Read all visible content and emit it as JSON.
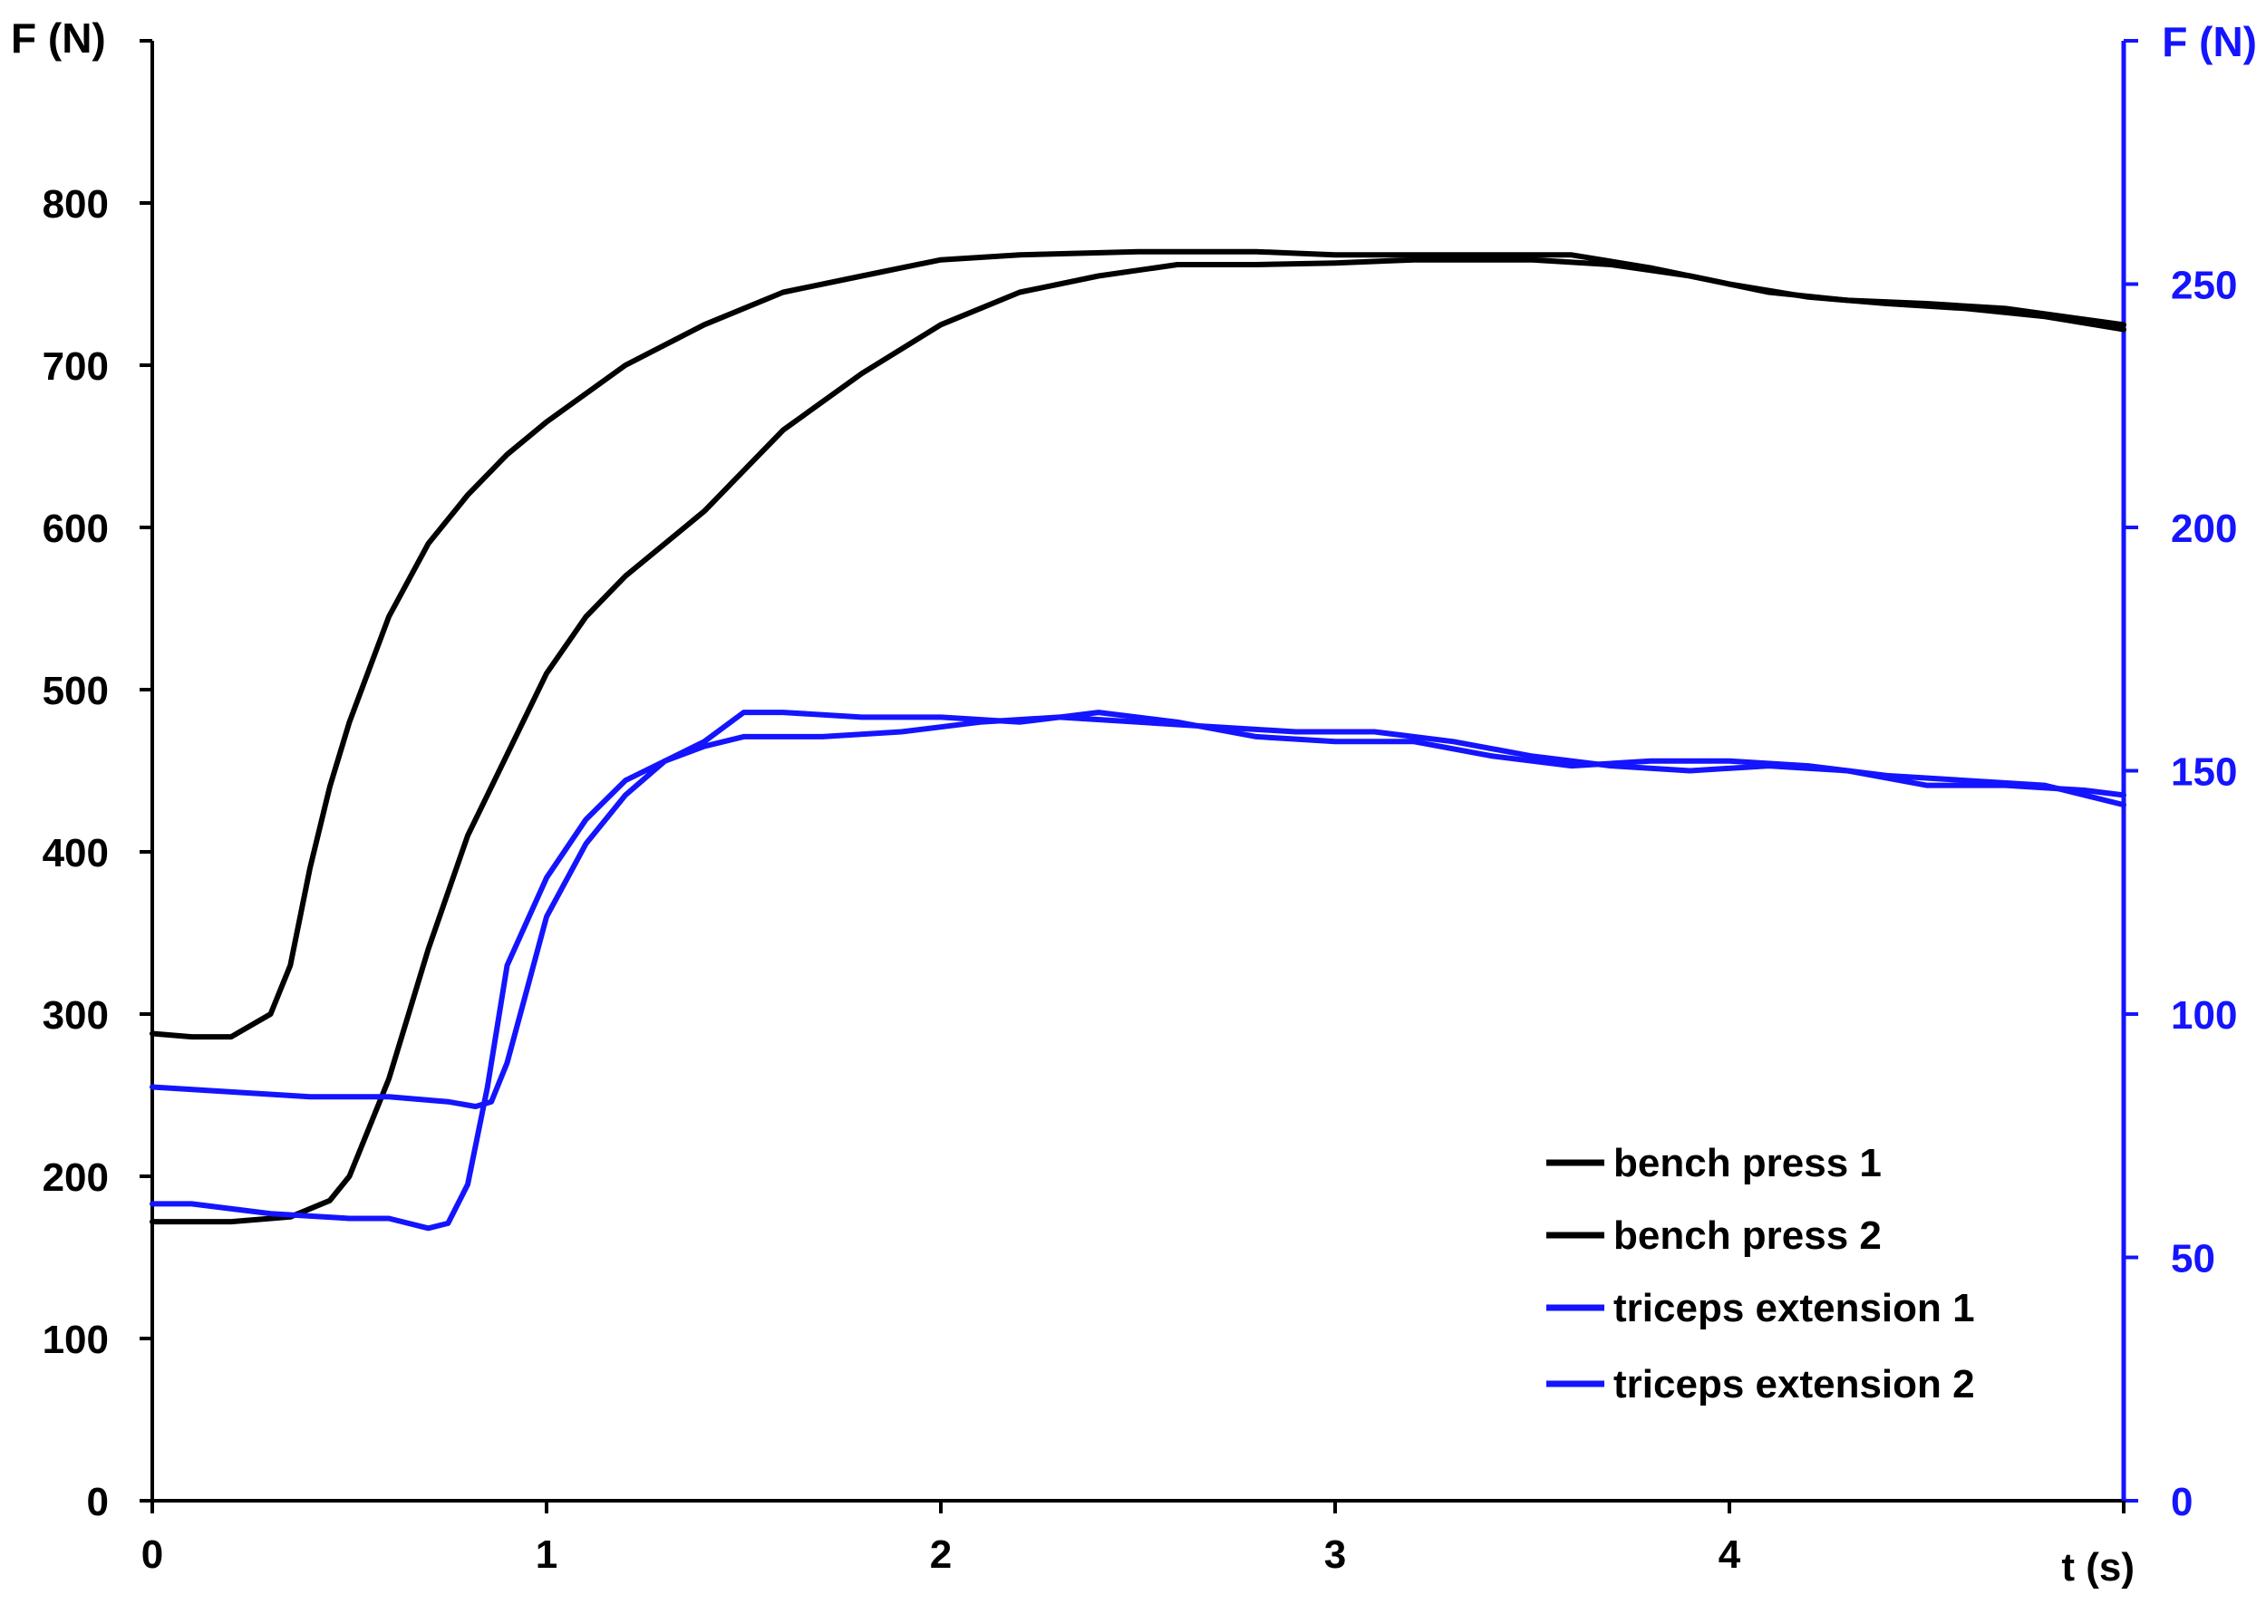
{
  "chart_data": {
    "type": "line",
    "title": "",
    "left_axis": {
      "label": "F (N)",
      "ylim": [
        0,
        900
      ],
      "ticks": [
        0,
        100,
        200,
        300,
        400,
        500,
        600,
        700,
        800
      ],
      "color": "#000000"
    },
    "right_axis": {
      "label": "F (N)",
      "ylim": [
        0,
        300
      ],
      "ticks": [
        0,
        50,
        100,
        150,
        200,
        250
      ],
      "color": "#1414ff"
    },
    "x_axis": {
      "label": "t (s)",
      "xlim": [
        0,
        5
      ],
      "ticks": [
        0,
        1,
        2,
        3,
        4
      ]
    },
    "grid": false,
    "legend_position": "bottom-right",
    "series": [
      {
        "name": "bench press 1",
        "axis": "left",
        "color": "#000000",
        "points": [
          [
            0,
            288
          ],
          [
            0.1,
            286
          ],
          [
            0.2,
            286
          ],
          [
            0.3,
            300
          ],
          [
            0.35,
            330
          ],
          [
            0.4,
            390
          ],
          [
            0.45,
            440
          ],
          [
            0.5,
            480
          ],
          [
            0.6,
            545
          ],
          [
            0.7,
            590
          ],
          [
            0.8,
            620
          ],
          [
            0.9,
            645
          ],
          [
            1.0,
            665
          ],
          [
            1.2,
            700
          ],
          [
            1.4,
            725
          ],
          [
            1.6,
            745
          ],
          [
            1.8,
            755
          ],
          [
            2.0,
            765
          ],
          [
            2.2,
            768
          ],
          [
            2.5,
            770
          ],
          [
            2.8,
            770
          ],
          [
            3.0,
            768
          ],
          [
            3.3,
            768
          ],
          [
            3.6,
            768
          ],
          [
            3.8,
            760
          ],
          [
            4.0,
            750
          ],
          [
            4.2,
            742
          ],
          [
            4.4,
            738
          ],
          [
            4.6,
            735
          ],
          [
            4.8,
            730
          ],
          [
            5.0,
            722
          ]
        ]
      },
      {
        "name": "bench press 2",
        "axis": "left",
        "color": "#000000",
        "points": [
          [
            0,
            172
          ],
          [
            0.2,
            172
          ],
          [
            0.35,
            175
          ],
          [
            0.45,
            185
          ],
          [
            0.5,
            200
          ],
          [
            0.55,
            230
          ],
          [
            0.6,
            260
          ],
          [
            0.65,
            300
          ],
          [
            0.7,
            340
          ],
          [
            0.8,
            410
          ],
          [
            0.9,
            460
          ],
          [
            1.0,
            510
          ],
          [
            1.1,
            545
          ],
          [
            1.2,
            570
          ],
          [
            1.3,
            590
          ],
          [
            1.4,
            610
          ],
          [
            1.5,
            635
          ],
          [
            1.6,
            660
          ],
          [
            1.8,
            695
          ],
          [
            2.0,
            725
          ],
          [
            2.2,
            745
          ],
          [
            2.4,
            755
          ],
          [
            2.6,
            762
          ],
          [
            2.8,
            762
          ],
          [
            3.0,
            763
          ],
          [
            3.2,
            765
          ],
          [
            3.5,
            765
          ],
          [
            3.7,
            762
          ],
          [
            3.9,
            755
          ],
          [
            4.1,
            745
          ],
          [
            4.3,
            740
          ],
          [
            4.5,
            738
          ],
          [
            4.7,
            735
          ],
          [
            5.0,
            725
          ]
        ]
      },
      {
        "name": "triceps extension 1",
        "axis": "right",
        "color": "#1414ff",
        "points": [
          [
            0,
            61
          ],
          [
            0.1,
            61
          ],
          [
            0.3,
            59
          ],
          [
            0.5,
            58
          ],
          [
            0.6,
            58
          ],
          [
            0.7,
            56
          ],
          [
            0.75,
            57
          ],
          [
            0.8,
            65
          ],
          [
            0.85,
            85
          ],
          [
            0.9,
            110
          ],
          [
            1.0,
            128
          ],
          [
            1.1,
            140
          ],
          [
            1.2,
            148
          ],
          [
            1.3,
            152
          ],
          [
            1.4,
            156
          ],
          [
            1.5,
            162
          ],
          [
            1.6,
            162
          ],
          [
            1.8,
            161
          ],
          [
            2.0,
            161
          ],
          [
            2.2,
            160
          ],
          [
            2.4,
            162
          ],
          [
            2.6,
            160
          ],
          [
            2.8,
            157
          ],
          [
            3.0,
            156
          ],
          [
            3.2,
            156
          ],
          [
            3.4,
            153
          ],
          [
            3.6,
            151
          ],
          [
            3.8,
            152
          ],
          [
            4.0,
            152
          ],
          [
            4.2,
            151
          ],
          [
            4.4,
            149
          ],
          [
            4.6,
            148
          ],
          [
            4.8,
            147
          ],
          [
            5.0,
            143
          ]
        ]
      },
      {
        "name": "triceps extension 2",
        "axis": "right",
        "color": "#1414ff",
        "points": [
          [
            0,
            85
          ],
          [
            0.2,
            84
          ],
          [
            0.4,
            83
          ],
          [
            0.6,
            83
          ],
          [
            0.75,
            82
          ],
          [
            0.82,
            81
          ],
          [
            0.86,
            82
          ],
          [
            0.9,
            90
          ],
          [
            0.95,
            105
          ],
          [
            1.0,
            120
          ],
          [
            1.1,
            135
          ],
          [
            1.2,
            145
          ],
          [
            1.3,
            152
          ],
          [
            1.4,
            155
          ],
          [
            1.5,
            157
          ],
          [
            1.7,
            157
          ],
          [
            1.9,
            158
          ],
          [
            2.1,
            160
          ],
          [
            2.3,
            161
          ],
          [
            2.5,
            160
          ],
          [
            2.7,
            159
          ],
          [
            2.9,
            158
          ],
          [
            3.1,
            158
          ],
          [
            3.3,
            156
          ],
          [
            3.5,
            153
          ],
          [
            3.7,
            151
          ],
          [
            3.9,
            150
          ],
          [
            4.1,
            151
          ],
          [
            4.3,
            150
          ],
          [
            4.5,
            147
          ],
          [
            4.7,
            147
          ],
          [
            4.9,
            146
          ],
          [
            5.0,
            145
          ]
        ]
      }
    ]
  }
}
